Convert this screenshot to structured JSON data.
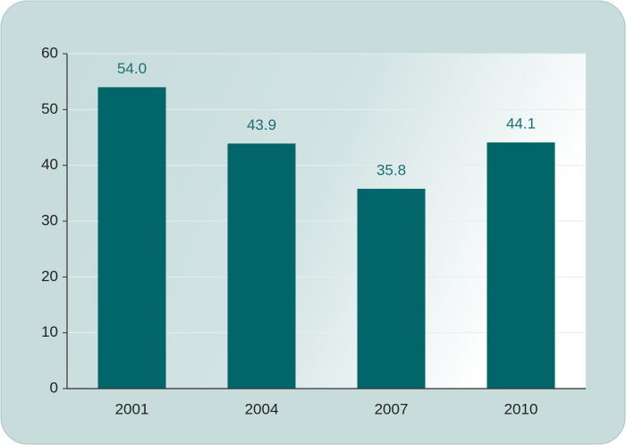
{
  "chart_data": {
    "type": "bar",
    "categories": [
      "2001",
      "2004",
      "2007",
      "2010"
    ],
    "values": [
      54.0,
      43.9,
      35.8,
      44.1
    ],
    "value_labels": [
      "54.0",
      "43.9",
      "35.8",
      "44.1"
    ],
    "color": "#02656a",
    "ylim": [
      0,
      60
    ],
    "yticks": [
      0,
      10,
      20,
      30,
      40,
      50,
      60
    ],
    "grid": true
  }
}
